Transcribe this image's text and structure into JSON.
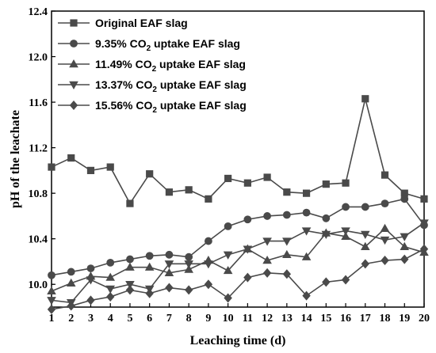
{
  "chart_data": {
    "type": "line",
    "xlabel": "Leaching time (d)",
    "ylabel": "pH of the leachate",
    "xlim": [
      1,
      20
    ],
    "ylim": [
      9.8,
      12.4
    ],
    "x_ticks": [
      "1",
      "2",
      "3",
      "4",
      "5",
      "6",
      "7",
      "8",
      "9",
      "10",
      "11",
      "12",
      "13",
      "14",
      "15",
      "16",
      "17",
      "18",
      "19",
      "20"
    ],
    "y_ticks": [
      "10.0",
      "10.4",
      "10.8",
      "11.2",
      "11.6",
      "12.0",
      "12.4"
    ],
    "legend_position": "top-left",
    "grid": false,
    "line_color": "#4a4a4a",
    "x": [
      1,
      2,
      3,
      4,
      5,
      6,
      7,
      8,
      9,
      10,
      11,
      12,
      13,
      14,
      15,
      16,
      17,
      18,
      19,
      20
    ],
    "series": [
      {
        "name_parts": [
          "Original EAF slag",
          "",
          ""
        ],
        "marker": "square",
        "values": [
          11.03,
          11.11,
          11.0,
          11.03,
          10.71,
          10.97,
          10.81,
          10.83,
          10.75,
          10.93,
          10.89,
          10.94,
          10.81,
          10.8,
          10.88,
          10.89,
          11.63,
          10.96,
          10.8,
          10.75
        ]
      },
      {
        "name_parts": [
          "9.35% CO",
          "2",
          " uptake EAF slag"
        ],
        "marker": "circle",
        "values": [
          10.08,
          10.11,
          10.14,
          10.19,
          10.22,
          10.25,
          10.26,
          10.24,
          10.38,
          10.51,
          10.57,
          10.6,
          10.61,
          10.63,
          10.58,
          10.68,
          10.68,
          10.71,
          10.75,
          10.52
        ]
      },
      {
        "name_parts": [
          "11.49% CO",
          "2",
          " uptake EAF slag"
        ],
        "marker": "triangle-up",
        "values": [
          9.94,
          10.01,
          10.07,
          10.06,
          10.15,
          10.15,
          10.1,
          10.13,
          10.21,
          10.12,
          10.31,
          10.21,
          10.26,
          10.24,
          10.45,
          10.42,
          10.33,
          10.49,
          10.33,
          10.28
        ]
      },
      {
        "name_parts": [
          "13.37% CO",
          "2",
          " uptake EAF slag"
        ],
        "marker": "triangle-down",
        "values": [
          9.86,
          9.84,
          10.04,
          9.96,
          10.0,
          9.96,
          10.18,
          10.18,
          10.18,
          10.26,
          10.31,
          10.38,
          10.38,
          10.47,
          10.44,
          10.47,
          10.44,
          10.39,
          10.42,
          10.54
        ]
      },
      {
        "name_parts": [
          "15.56% CO",
          "2",
          " uptake EAF slag"
        ],
        "marker": "diamond",
        "values": [
          9.78,
          9.81,
          9.86,
          9.89,
          9.95,
          9.92,
          9.97,
          9.95,
          10.0,
          9.88,
          10.06,
          10.1,
          10.09,
          9.9,
          10.02,
          10.04,
          10.18,
          10.21,
          10.22,
          10.31
        ]
      }
    ]
  }
}
